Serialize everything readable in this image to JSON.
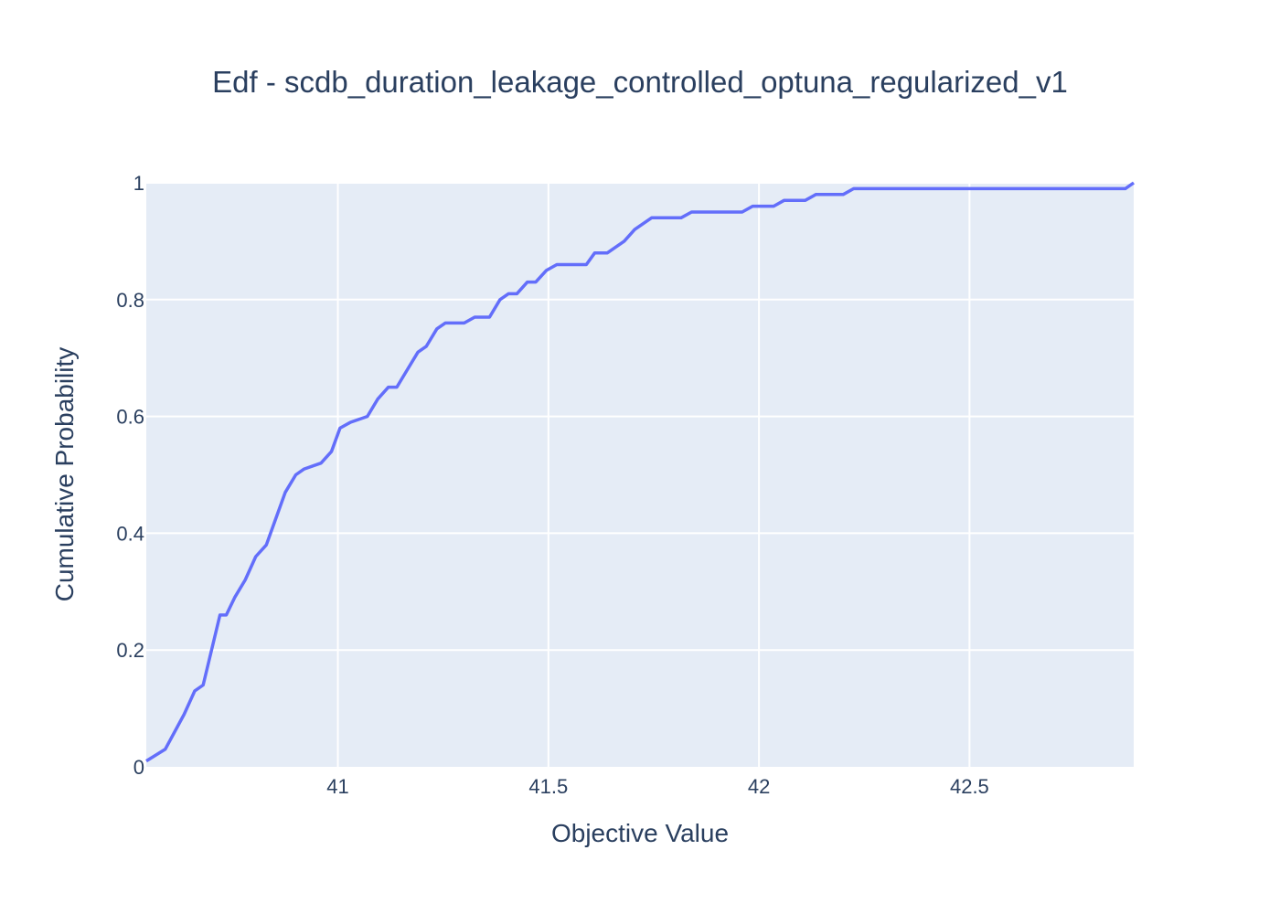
{
  "chart_data": {
    "type": "line",
    "title": "Edf - scdb_duration_leakage_controlled_optuna_regularized_v1",
    "xlabel": "Objective Value",
    "ylabel": "Cumulative Probability",
    "xlim": [
      40.545,
      42.89
    ],
    "ylim": [
      0,
      1
    ],
    "xticks": [
      41,
      41.5,
      42,
      42.5
    ],
    "xtick_labels": [
      "41",
      "41.5",
      "42",
      "42.5"
    ],
    "yticks": [
      0,
      0.2,
      0.4,
      0.6,
      0.8,
      1
    ],
    "ytick_labels": [
      "0",
      "0.2",
      "0.4",
      "0.6",
      "0.8",
      "1"
    ],
    "grid": true,
    "legend": false,
    "colors": {
      "line": "#636efa",
      "plot_bg": "#e5ecf6",
      "grid": "#ffffff",
      "text": "#2a3f5f"
    },
    "series": [
      {
        "x": [
          40.545,
          40.59,
          40.635,
          40.66,
          40.68,
          40.72,
          40.735,
          40.755,
          40.78,
          40.805,
          40.83,
          40.85,
          40.875,
          40.9,
          40.92,
          40.96,
          40.985,
          41.005,
          41.03,
          41.07,
          41.095,
          41.12,
          41.14,
          41.165,
          41.19,
          41.21,
          41.235,
          41.255,
          41.3,
          41.325,
          41.36,
          41.385,
          41.405,
          41.425,
          41.45,
          41.47,
          41.495,
          41.52,
          41.545,
          41.59,
          41.61,
          41.64,
          41.68,
          41.705,
          41.745,
          41.79,
          41.815,
          41.84,
          41.875,
          41.96,
          41.985,
          42.035,
          42.06,
          42.11,
          42.135,
          42.2,
          42.225,
          42.78,
          42.87,
          42.89
        ],
        "y": [
          0.01,
          0.03,
          0.09,
          0.13,
          0.14,
          0.26,
          0.26,
          0.29,
          0.32,
          0.36,
          0.38,
          0.42,
          0.47,
          0.5,
          0.51,
          0.52,
          0.54,
          0.58,
          0.59,
          0.6,
          0.63,
          0.65,
          0.65,
          0.68,
          0.71,
          0.72,
          0.75,
          0.76,
          0.76,
          0.77,
          0.77,
          0.8,
          0.81,
          0.81,
          0.83,
          0.83,
          0.85,
          0.86,
          0.86,
          0.86,
          0.88,
          0.88,
          0.9,
          0.92,
          0.94,
          0.94,
          0.94,
          0.95,
          0.95,
          0.95,
          0.96,
          0.96,
          0.97,
          0.97,
          0.98,
          0.98,
          0.99,
          0.99,
          0.99,
          1.0
        ]
      }
    ]
  }
}
